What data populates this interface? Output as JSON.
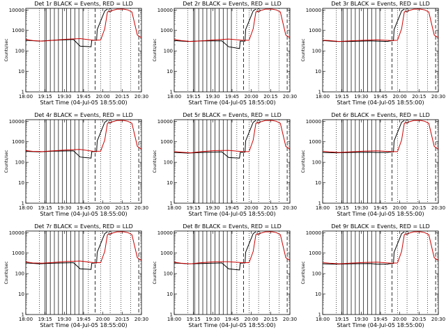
{
  "colors": {
    "events": "#000000",
    "lld": "#cc0000",
    "background": "#ffffff"
  },
  "common": {
    "xlabel": "Start Time (04-Jul-05 18:55:00)",
    "ylabel": "Counts/sec",
    "x_tick_labels": [
      "18:00",
      "19:15",
      "19:30",
      "19:45",
      "20:00",
      "20:15",
      "20:30"
    ],
    "y_tick_labels": [
      "1",
      "10",
      "100",
      "1000",
      "10000"
    ]
  },
  "chart_data": [
    {
      "type": "line",
      "title": "Det 1r BLACK = Events, RED = LLD",
      "ylim": [
        1,
        12000
      ],
      "yscale": "log",
      "series": [
        {
          "color": "black",
          "x": [
            0,
            10,
            20,
            35,
            40,
            48,
            48.5,
            52,
            52.5,
            58,
            60
          ],
          "y": [
            330,
            300,
            330,
            360,
            170,
            160,
            330,
            330,
            1100,
            9000,
            11000
          ]
        },
        {
          "color": "red",
          "x": [
            0,
            5,
            12,
            20,
            30,
            40,
            50,
            55,
            58,
            60,
            67,
            72,
            75,
            78,
            82,
            85
          ],
          "y": [
            360,
            320,
            300,
            330,
            370,
            400,
            330,
            340,
            1200,
            8000,
            11000,
            11000,
            10000,
            8000,
            600,
            430
          ]
        }
      ]
    },
    {
      "type": "line",
      "title": "Det 2r BLACK = Events, RED = LLD",
      "ylim": [
        1,
        12000
      ],
      "yscale": "log",
      "series": [
        {
          "color": "black",
          "x": [
            0,
            10,
            20,
            35,
            40,
            48,
            48.5,
            52,
            52.5,
            58,
            60
          ],
          "y": [
            320,
            290,
            310,
            310,
            160,
            130,
            300,
            300,
            1100,
            9000,
            11000
          ]
        },
        {
          "color": "red",
          "x": [
            0,
            5,
            12,
            20,
            30,
            40,
            50,
            55,
            58,
            60,
            67,
            72,
            75,
            78,
            82,
            85
          ],
          "y": [
            360,
            320,
            290,
            310,
            350,
            380,
            330,
            330,
            1200,
            8000,
            11000,
            11000,
            10000,
            8000,
            600,
            430
          ]
        }
      ]
    },
    {
      "type": "line",
      "title": "Det 3r BLACK = Events, RED = LLD",
      "ylim": [
        1,
        12000
      ],
      "yscale": "log",
      "series": [
        {
          "color": "black",
          "x": [
            0,
            10,
            20,
            35,
            40,
            48,
            48.5,
            52,
            52.5,
            58,
            60
          ],
          "y": [
            320,
            290,
            290,
            310,
            300,
            290,
            300,
            320,
            1100,
            9000,
            11000
          ]
        },
        {
          "color": "red",
          "x": [
            0,
            5,
            12,
            20,
            30,
            40,
            50,
            55,
            58,
            60,
            67,
            72,
            75,
            78,
            82,
            85
          ],
          "y": [
            330,
            320,
            290,
            310,
            330,
            350,
            320,
            330,
            1200,
            8000,
            11000,
            11000,
            10000,
            8000,
            600,
            430
          ]
        }
      ]
    },
    {
      "type": "line",
      "title": "Det 4r BLACK = Events, RED = LLD",
      "ylim": [
        1,
        12000
      ],
      "yscale": "log",
      "series": [
        {
          "color": "black",
          "x": [
            0,
            10,
            20,
            35,
            40,
            48,
            48.5,
            52,
            52.5,
            58,
            60
          ],
          "y": [
            340,
            320,
            350,
            360,
            180,
            160,
            330,
            330,
            1100,
            9000,
            11000
          ]
        },
        {
          "color": "red",
          "x": [
            0,
            5,
            12,
            20,
            30,
            40,
            50,
            55,
            58,
            60,
            67,
            72,
            75,
            78,
            82,
            85
          ],
          "y": [
            370,
            340,
            330,
            360,
            400,
            420,
            340,
            350,
            1200,
            8000,
            11000,
            11000,
            10000,
            8000,
            600,
            430
          ]
        }
      ]
    },
    {
      "type": "line",
      "title": "Det 5r BLACK = Events, RED = LLD",
      "ylim": [
        1,
        12000
      ],
      "yscale": "log",
      "series": [
        {
          "color": "black",
          "x": [
            0,
            10,
            20,
            35,
            40,
            48,
            48.5,
            52,
            52.5,
            58,
            60
          ],
          "y": [
            300,
            280,
            300,
            320,
            170,
            160,
            300,
            310,
            1100,
            9000,
            11000
          ]
        },
        {
          "color": "red",
          "x": [
            0,
            5,
            12,
            20,
            30,
            40,
            50,
            55,
            58,
            60,
            67,
            72,
            75,
            78,
            82,
            85
          ],
          "y": [
            330,
            310,
            290,
            330,
            370,
            380,
            330,
            330,
            1200,
            8000,
            11000,
            11000,
            10000,
            8000,
            600,
            430
          ]
        }
      ]
    },
    {
      "type": "line",
      "title": "Det 6r BLACK = Events, RED = LLD",
      "ylim": [
        1,
        12000
      ],
      "yscale": "log",
      "series": [
        {
          "color": "black",
          "x": [
            0,
            10,
            20,
            35,
            40,
            48,
            48.5,
            52,
            52.5,
            58,
            60
          ],
          "y": [
            300,
            290,
            300,
            310,
            300,
            300,
            310,
            320,
            1100,
            9000,
            11000
          ]
        },
        {
          "color": "red",
          "x": [
            0,
            5,
            12,
            20,
            30,
            40,
            50,
            55,
            58,
            60,
            67,
            72,
            75,
            78,
            82,
            85
          ],
          "y": [
            340,
            320,
            300,
            320,
            350,
            360,
            330,
            330,
            1200,
            8000,
            11000,
            11000,
            10000,
            8000,
            600,
            430
          ]
        }
      ]
    },
    {
      "type": "line",
      "title": "Det 7r BLACK = Events, RED = LLD",
      "ylim": [
        1,
        12000
      ],
      "yscale": "log",
      "series": [
        {
          "color": "black",
          "x": [
            0,
            10,
            20,
            35,
            40,
            48,
            48.5,
            52,
            52.5,
            58,
            60
          ],
          "y": [
            330,
            300,
            320,
            340,
            170,
            160,
            320,
            330,
            1100,
            9000,
            11000
          ]
        },
        {
          "color": "red",
          "x": [
            0,
            5,
            12,
            20,
            30,
            40,
            50,
            55,
            58,
            60,
            67,
            72,
            75,
            78,
            82,
            85
          ],
          "y": [
            370,
            330,
            320,
            350,
            390,
            410,
            340,
            340,
            1200,
            8000,
            11000,
            11000,
            10000,
            8000,
            600,
            430
          ]
        }
      ]
    },
    {
      "type": "line",
      "title": "Det 8r BLACK = Events, RED = LLD",
      "ylim": [
        1,
        12000
      ],
      "yscale": "log",
      "series": [
        {
          "color": "black",
          "x": [
            0,
            10,
            20,
            35,
            40,
            48,
            48.5,
            52,
            52.5,
            58,
            60
          ],
          "y": [
            330,
            300,
            310,
            330,
            170,
            150,
            320,
            330,
            1100,
            9000,
            11000
          ]
        },
        {
          "color": "red",
          "x": [
            0,
            5,
            12,
            20,
            30,
            40,
            50,
            55,
            58,
            60,
            67,
            72,
            75,
            78,
            82,
            85
          ],
          "y": [
            360,
            320,
            300,
            340,
            380,
            380,
            340,
            340,
            1200,
            8000,
            11000,
            11000,
            10000,
            8000,
            600,
            430
          ]
        }
      ]
    },
    {
      "type": "line",
      "title": "Det 9r BLACK = Events, RED = LLD",
      "ylim": [
        1,
        12000
      ],
      "yscale": "log",
      "series": [
        {
          "color": "black",
          "x": [
            0,
            10,
            20,
            35,
            40,
            48,
            48.5,
            52,
            52.5,
            58,
            60
          ],
          "y": [
            300,
            290,
            300,
            310,
            290,
            290,
            300,
            310,
            1100,
            9000,
            11000
          ]
        },
        {
          "color": "red",
          "x": [
            0,
            5,
            12,
            20,
            30,
            40,
            50,
            55,
            58,
            60,
            67,
            72,
            75,
            78,
            82,
            85
          ],
          "y": [
            340,
            320,
            300,
            320,
            350,
            360,
            320,
            330,
            1200,
            8000,
            11000,
            11000,
            10000,
            8000,
            600,
            430
          ]
        }
      ]
    }
  ]
}
